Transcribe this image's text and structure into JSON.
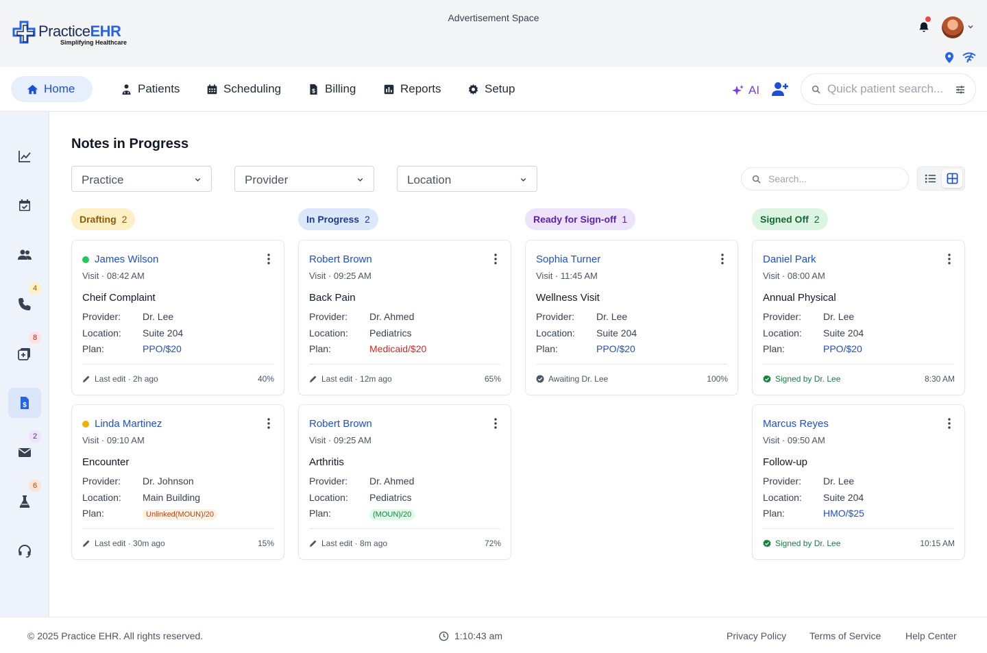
{
  "header": {
    "brand_prefix": "Practice",
    "brand_suffix": "EHR",
    "tagline": "Simplifying Healthcare",
    "ad_text": "Advertisement Space"
  },
  "nav": {
    "items": [
      {
        "label": "Home",
        "icon": "home-icon"
      },
      {
        "label": "Patients",
        "icon": "patient-icon"
      },
      {
        "label": "Scheduling",
        "icon": "calendar-icon"
      },
      {
        "label": "Billing",
        "icon": "billing-icon"
      },
      {
        "label": "Reports",
        "icon": "reports-icon"
      },
      {
        "label": "Setup",
        "icon": "gear-icon"
      }
    ],
    "ai_label": "AI",
    "search_placeholder": "Quick patient search..."
  },
  "sidebar": {
    "badges": {
      "calls": "4",
      "tasks": "8",
      "messages": "2",
      "labs": "6"
    }
  },
  "main": {
    "title": "Notes in Progress",
    "filters": {
      "practice": "Practice",
      "provider": "Provider",
      "location": "Location"
    },
    "search_placeholder": "Search..."
  },
  "columns": [
    {
      "label": "Drafting",
      "count": "2",
      "bg": "#fdf0c4",
      "fg": "#92580b"
    },
    {
      "label": "In Progress",
      "count": "2",
      "bg": "#dbe7fb",
      "fg": "#1e3a8a"
    },
    {
      "label": "Ready for Sign-off",
      "count": "1",
      "bg": "#ede4fb",
      "fg": "#5b21b6"
    },
    {
      "label": "Signed Off",
      "count": "2",
      "bg": "#dcf5e3",
      "fg": "#166534"
    }
  ],
  "labels": {
    "provider": "Provider:",
    "location": "Location:",
    "plan": "Plan:"
  },
  "cards": [
    {
      "name": "James Wilson",
      "visit": "Visit · 08:42 AM",
      "complaint": "Cheif Complaint",
      "provider": "Dr. Lee",
      "location": "Suite 204",
      "plan": "PPO/$20",
      "footer": "Last edit · 2h ago",
      "right": "40%"
    },
    {
      "name": "Linda Martinez",
      "visit": "Visit · 09:10 AM",
      "complaint": "Encounter",
      "provider": "Dr. Johnson",
      "location": "Main Building",
      "plan": "Unlinked(MOUN)/20",
      "footer": "Last edit · 30m ago",
      "right": "15%"
    },
    {
      "name": "Robert Brown",
      "visit": "Visit · 09:25 AM",
      "complaint": "Back Pain",
      "provider": "Dr. Ahmed",
      "location": "Pediatrics",
      "plan": "Medicaid/$20",
      "footer": "Last edit · 12m ago",
      "right": "65%"
    },
    {
      "name": "Robert Brown",
      "visit": "Visit · 09:25 AM",
      "complaint": "Arthritis",
      "provider": "Dr. Ahmed",
      "location": "Pediatrics",
      "plan": "(MOUN)/20",
      "footer": "Last edit · 8m ago",
      "right": "72%"
    },
    {
      "name": "Sophia Turner",
      "visit": "Visit · 11:45 AM",
      "complaint": "Wellness Visit",
      "provider": "Dr. Lee",
      "location": "Suite 204",
      "plan": "PPO/$20",
      "footer": "Awaiting Dr. Lee",
      "right": "100%"
    },
    {
      "name": "Daniel Park",
      "visit": "Visit · 08:00 AM",
      "complaint": "Annual Physical",
      "provider": "Dr. Lee",
      "location": "Suite 204",
      "plan": "PPO/$20",
      "footer": "Signed by Dr. Lee",
      "right": "8:30 AM"
    },
    {
      "name": "Marcus Reyes",
      "visit": "Visit · 09:50 AM",
      "complaint": "Follow-up",
      "provider": "Dr. Lee",
      "location": "Suite 204",
      "plan": "HMO/$25",
      "footer": "Signed by Dr. Lee",
      "right": "10:15 AM"
    }
  ],
  "footer": {
    "copyright": "© 2025 Practice EHR. All rights reserved.",
    "time": "1:10:43 am",
    "links": [
      "Privacy Policy",
      "Terms of Service",
      "Help Center"
    ]
  },
  "colors": {
    "accent": "#2563eb",
    "ai": "#7c3aed",
    "status_green": "#22c55e",
    "status_yellow": "#eab308"
  }
}
